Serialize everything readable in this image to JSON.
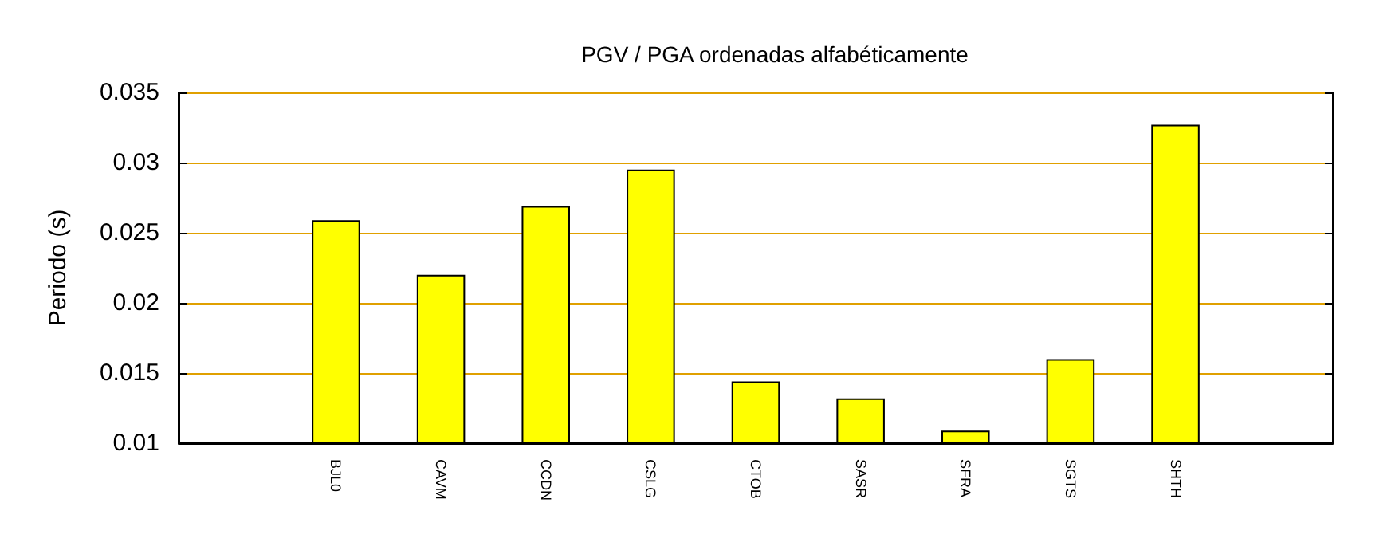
{
  "chart_data": {
    "type": "bar",
    "title": "PGV / PGA ordenadas alfabéticamente",
    "ylabel": "Periodo (s)",
    "categories": [
      null,
      "BJL0",
      "CAVM",
      "CCDN",
      "CSLG",
      "CTOB",
      "SASR",
      "SFRA",
      "SGTS",
      "SHTH",
      null
    ],
    "values": [
      null,
      0.0259,
      0.022,
      0.0269,
      0.0295,
      0.0144,
      0.0132,
      0.0109,
      0.016,
      0.0327,
      null
    ],
    "color": "#ffff00",
    "ylim": [
      0.01,
      0.035
    ],
    "yticks": [
      0.01,
      0.015,
      0.02,
      0.025,
      0.03,
      0.035
    ],
    "grid": "y"
  }
}
